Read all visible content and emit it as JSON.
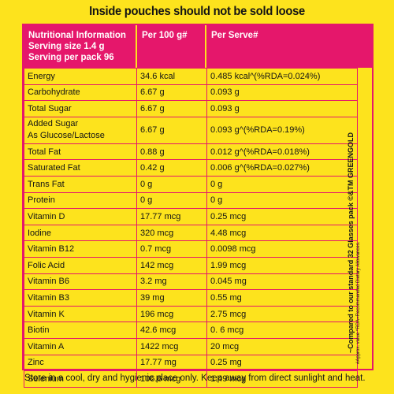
{
  "heading": "Inside pouches should not be sold loose",
  "header": {
    "col1_lines": [
      "Nutritional Information",
      "Serving size 1.4 g",
      "Serving per pack 96"
    ],
    "col2": "Per 100 g#",
    "col3": "Per Serve#"
  },
  "rows": [
    {
      "name": "Energy",
      "per100": "34.6 kcal",
      "serve": "0.485 kcal^(%RDA=0.024%)"
    },
    {
      "name": "Carbohydrate",
      "per100": "6.67 g",
      "serve": "0.093 g"
    },
    {
      "name": "Total Sugar",
      "per100": "6.67 g",
      "serve": "0.093 g"
    },
    {
      "name": "Added Sugar",
      "name2": "As Glucose/Lactose",
      "per100": "6.67 g",
      "serve": "0.093 g^(%RDA=0.19%)"
    },
    {
      "name": "Total Fat",
      "per100": "0.88 g",
      "serve": "0.012 g^(%RDA=0.018%)"
    },
    {
      "name": "Saturated Fat",
      "per100": "0.42 g",
      "serve": "0.006 g^(%RDA=0.027%)"
    },
    {
      "name": "Trans Fat",
      "per100": "0 g",
      "serve": "0 g"
    },
    {
      "name": "Protein",
      "per100": "0 g",
      "serve": "0 g"
    },
    {
      "name": "Vitamin D",
      "per100": "17.77  mcg",
      "serve": "0.25 mcg"
    },
    {
      "name": "Iodine",
      "per100": "320 mcg",
      "serve": "4.48 mcg"
    },
    {
      "name": "Vitamin B12",
      "per100": "0.7 mcg",
      "serve": "0.0098 mcg"
    },
    {
      "name": "Folic Acid",
      "per100": "142 mcg",
      "serve": "1.99 mcg"
    },
    {
      "name": "Vitamin B6",
      "per100": "3.2 mg",
      "serve": "0.045 mg"
    },
    {
      "name": "Vitamin B3",
      "per100": "39 mg",
      "serve": "0.55 mg"
    },
    {
      "name": "Vitamin K",
      "per100": "196 mcg",
      "serve": "2.75 mcg"
    },
    {
      "name": "Biotin",
      "per100": "42.6 mcg",
      "serve": "0. 6 mcg"
    },
    {
      "name": "Vitamin A",
      "per100": "1422 mcg",
      "serve": "20 mcg"
    },
    {
      "name": "Zinc",
      "per100": "17.77 mg",
      "serve": "0.25 mg"
    },
    {
      "name": "Selenium",
      "per100": "106.6 mcg",
      "serve": "1.49 mcg"
    }
  ],
  "side_text": "~Compared to our standard 32 Glasses pack  ©&TM GREENGOLD",
  "side_notes": "#Approx. value  ^RDA=Recommended Dietary Allowances.",
  "footer": "Store in a cool, dry and  hygienic place only.  Keep away from direct sunlight and heat."
}
